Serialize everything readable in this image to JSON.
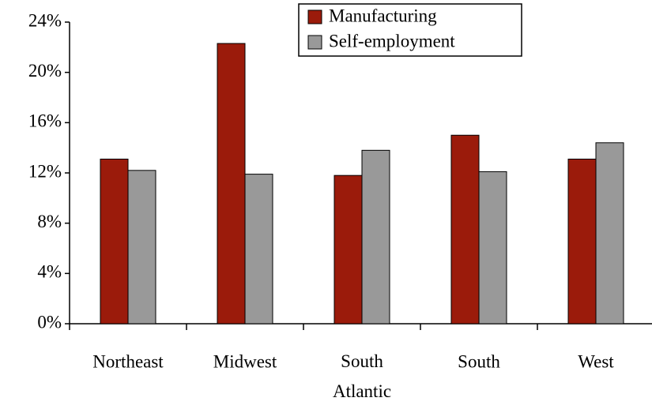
{
  "chart_data": {
    "type": "bar",
    "categories": [
      "Northeast",
      "Midwest",
      "South\nAtlantic",
      "South",
      "West"
    ],
    "series": [
      {
        "name": "Manufacturing",
        "color": "#9b1b0b",
        "values": [
          13.1,
          22.3,
          11.8,
          15.0,
          13.1
        ]
      },
      {
        "name": "Self-employment",
        "color": "#999999",
        "values": [
          12.2,
          11.9,
          13.8,
          12.1,
          14.4
        ]
      }
    ],
    "ylim": [
      0,
      24
    ],
    "yticks": [
      {
        "value": 0,
        "label": "0%"
      },
      {
        "value": 4,
        "label": "4%"
      },
      {
        "value": 8,
        "label": "8%"
      },
      {
        "value": 12,
        "label": "12%"
      },
      {
        "value": 16,
        "label": "16%"
      },
      {
        "value": 20,
        "label": "20%"
      },
      {
        "value": 24,
        "label": "24%"
      }
    ],
    "grid": false,
    "legend": "top"
  }
}
